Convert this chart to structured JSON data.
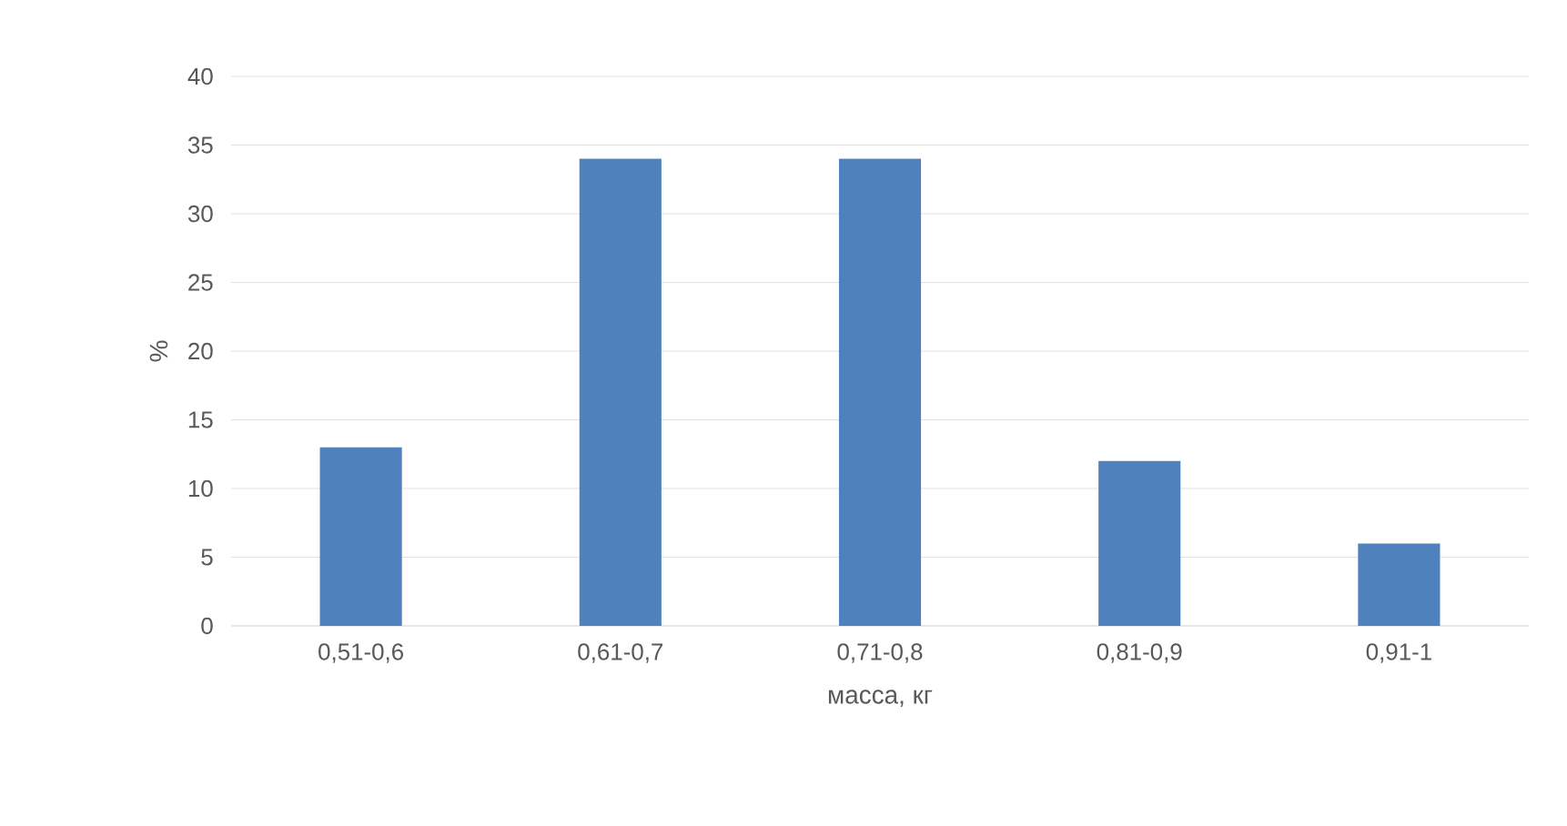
{
  "chart_data": {
    "type": "bar",
    "xlabel": "масса, кг",
    "ylabel": "%",
    "categories": [
      "0,51-0,6",
      "0,61-0,7",
      "0,71-0,8",
      "0,81-0,9",
      "0,91-1"
    ],
    "values": [
      13,
      34,
      34,
      12,
      6
    ],
    "color": "#4f81bd",
    "ylim": [
      0,
      40
    ],
    "yticks": [
      0,
      5,
      10,
      15,
      20,
      25,
      30,
      35,
      40
    ],
    "grid": "y"
  }
}
